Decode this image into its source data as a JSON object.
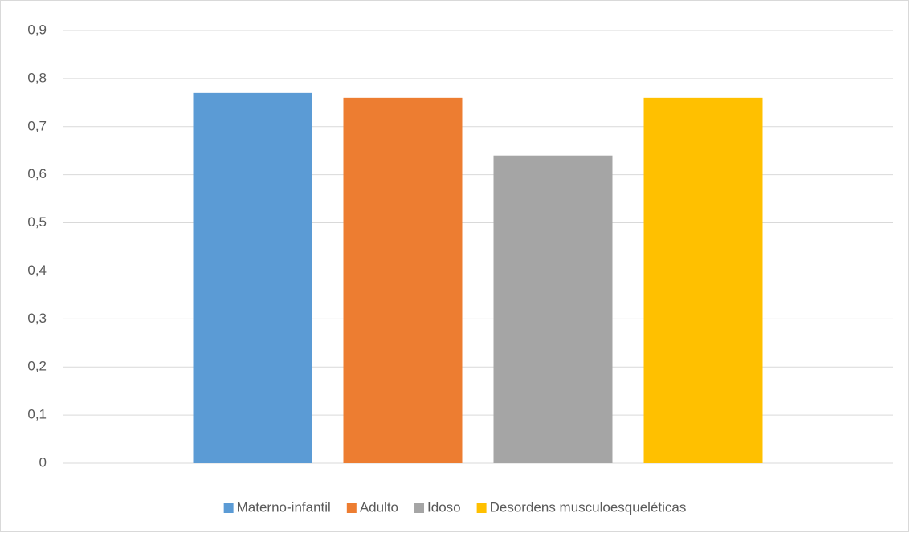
{
  "chart_data": {
    "type": "bar",
    "categories": [
      null
    ],
    "series": [
      {
        "name": "Materno-infantil",
        "color": "#5b9bd5",
        "values": [
          0.77
        ]
      },
      {
        "name": "Adulto",
        "color": "#ed7d31",
        "values": [
          0.76
        ]
      },
      {
        "name": "Idoso",
        "color": "#a5a5a5",
        "values": [
          0.64
        ]
      },
      {
        "name": "Desordens musculoesqueléticas",
        "color": "#ffc000",
        "values": [
          0.76
        ]
      }
    ],
    "ylim": [
      0,
      0.9
    ],
    "yticks": [
      0,
      {
        "value": 0.1,
        "label": "0,1"
      },
      {
        "value": 0.2,
        "label": "0,2"
      },
      {
        "value": 0.3,
        "label": "0,3"
      },
      {
        "value": 0.4,
        "label": "0,4"
      },
      {
        "value": 0.5,
        "label": "0,5"
      },
      {
        "value": 0.6,
        "label": "0,6"
      },
      {
        "value": 0.7,
        "label": "0,7"
      },
      {
        "value": 0.8,
        "label": "0,8"
      },
      {
        "value": 0.9,
        "label": "0,9"
      }
    ],
    "grid": true,
    "legend": "bottom"
  }
}
